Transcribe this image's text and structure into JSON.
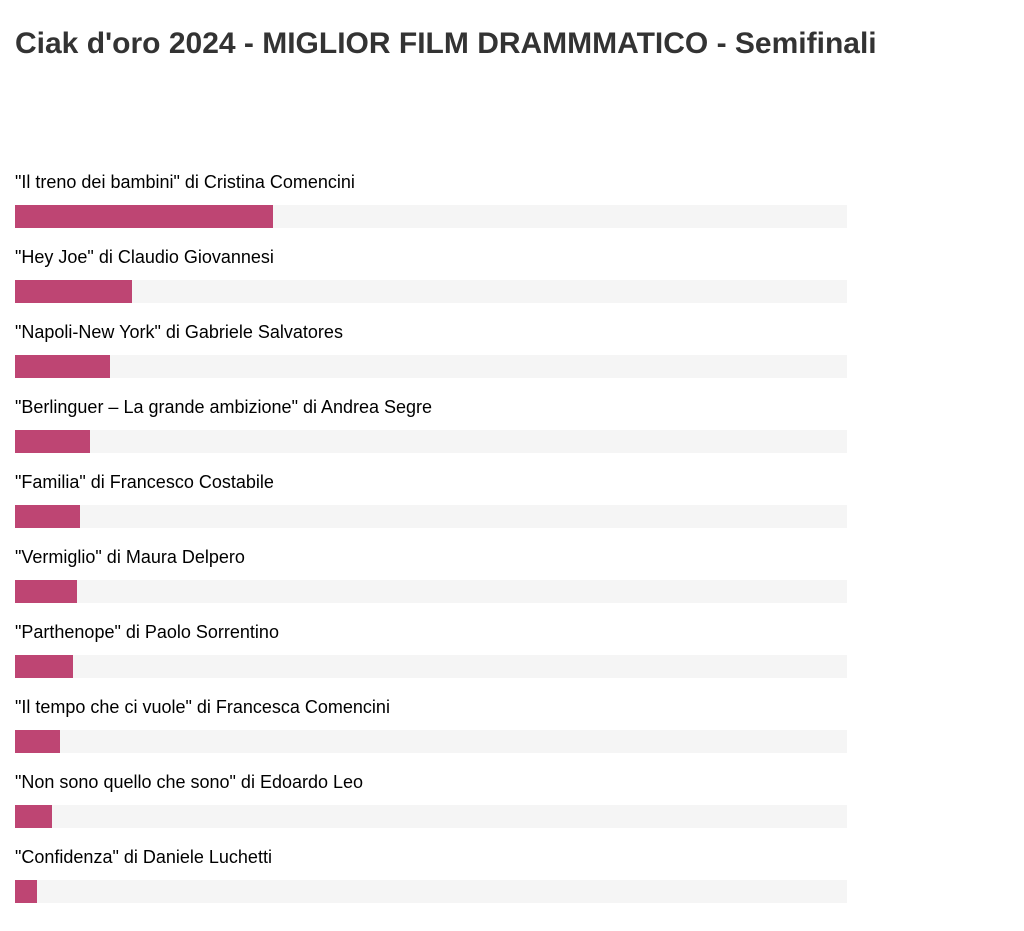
{
  "poll": {
    "title": "Ciak d'oro 2024 - MIGLIOR FILM DRAMMMATICO - Semifinali",
    "bar_color": "#be4573",
    "track_color": "#f5f5f5",
    "options": [
      {
        "label": "\"Il treno dei bambini\" di Cristina Comencini",
        "share": 0.31
      },
      {
        "label": "\"Hey Joe\" di Claudio Giovannesi",
        "share": 0.141
      },
      {
        "label": "\"Napoli-New York\" di Gabriele Salvatores",
        "share": 0.114
      },
      {
        "label": "\"Berlinguer – La grande ambizione\" di Andrea Segre",
        "share": 0.09
      },
      {
        "label": "\"Familia\" di Francesco Costabile",
        "share": 0.078
      },
      {
        "label": "\"Vermiglio\" di Maura Delpero",
        "share": 0.074
      },
      {
        "label": "\"Parthenope\" di Paolo Sorrentino",
        "share": 0.07
      },
      {
        "label": "\"Il tempo che ci vuole\" di Francesca Comencini",
        "share": 0.054
      },
      {
        "label": "\"Non sono quello che sono\" di Edoardo Leo",
        "share": 0.045
      },
      {
        "label": "\"Confidenza\" di Daniele Luchetti",
        "share": 0.026
      }
    ]
  }
}
